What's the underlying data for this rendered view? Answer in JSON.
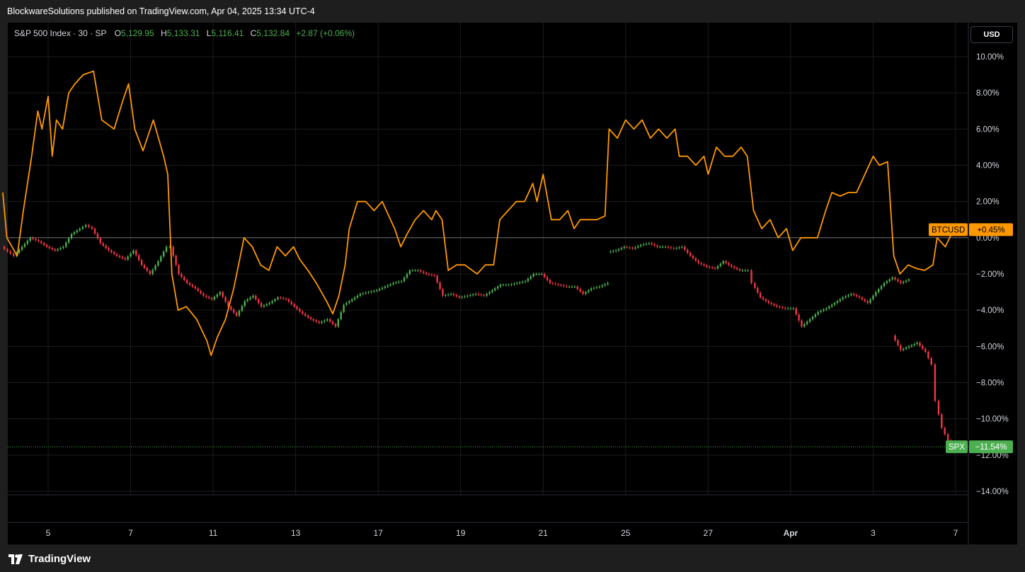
{
  "header": {
    "published": "BlockwareSolutions published on TradingView.com, Apr 04, 2025 13:34 UTC-4"
  },
  "legend": {
    "symbol": "S&P 500 Index · 30 · SP",
    "o_label": "O",
    "o_value": "5,129.95",
    "h_label": "H",
    "h_value": "5,133.31",
    "l_label": "L",
    "l_value": "5,116.41",
    "c_label": "C",
    "c_value": "5,132.84",
    "change": "+2.87 (+0.06%)"
  },
  "currency_button": "USD",
  "footer": {
    "brand": "TradingView"
  },
  "chart_data": {
    "type": "line",
    "scale": "percent",
    "ylim": [
      -14.0,
      10.0
    ],
    "yticks": [
      "10.00%",
      "8.00%",
      "6.00%",
      "4.00%",
      "2.00%",
      "0.00%",
      "−2.00%",
      "−4.00%",
      "−6.00%",
      "−8.00%",
      "−10.00%",
      "−12.00%",
      "−14.00%"
    ],
    "ytick_values": [
      10,
      8,
      6,
      4,
      2,
      0,
      -2,
      -4,
      -6,
      -8,
      -10,
      -12,
      -14
    ],
    "xticks": [
      "5",
      "7",
      "11",
      "13",
      "17",
      "19",
      "21",
      "25",
      "27",
      "Apr",
      "3",
      "7"
    ],
    "xtick_positions": [
      2,
      4,
      6,
      8,
      10,
      12,
      14,
      16,
      18,
      20,
      22,
      24
    ],
    "x_range": [
      0.9,
      25.3
    ],
    "series": [
      {
        "name": "BTCUSD",
        "color": "#ff9800",
        "last_label": "+0.45%",
        "last_value": 0.45,
        "points": [
          [
            0.9,
            2.5
          ],
          [
            1.0,
            0.0
          ],
          [
            1.25,
            -1.0
          ],
          [
            1.4,
            1.5
          ],
          [
            1.6,
            4.5
          ],
          [
            1.75,
            7.0
          ],
          [
            1.85,
            6.0
          ],
          [
            2.0,
            7.8
          ],
          [
            2.1,
            4.5
          ],
          [
            2.2,
            6.5
          ],
          [
            2.35,
            6.0
          ],
          [
            2.5,
            8.0
          ],
          [
            2.65,
            8.5
          ],
          [
            2.85,
            9.0
          ],
          [
            3.1,
            9.2
          ],
          [
            3.3,
            6.5
          ],
          [
            3.6,
            6.0
          ],
          [
            3.8,
            7.5
          ],
          [
            3.95,
            8.5
          ],
          [
            4.1,
            6.0
          ],
          [
            4.3,
            4.8
          ],
          [
            4.55,
            6.5
          ],
          [
            4.8,
            4.5
          ],
          [
            4.9,
            3.5
          ],
          [
            5.0,
            -2.0
          ],
          [
            5.15,
            -4.0
          ],
          [
            5.35,
            -3.8
          ],
          [
            5.6,
            -4.5
          ],
          [
            5.85,
            -5.7
          ],
          [
            5.95,
            -6.5
          ],
          [
            6.1,
            -5.5
          ],
          [
            6.3,
            -4.5
          ],
          [
            6.5,
            -2.8
          ],
          [
            6.75,
            0.0
          ],
          [
            6.95,
            -0.5
          ],
          [
            7.15,
            -1.5
          ],
          [
            7.35,
            -1.8
          ],
          [
            7.55,
            -0.5
          ],
          [
            7.75,
            -1.0
          ],
          [
            7.95,
            -0.5
          ],
          [
            8.1,
            -1.2
          ],
          [
            8.3,
            -1.8
          ],
          [
            8.5,
            -2.5
          ],
          [
            8.75,
            -3.5
          ],
          [
            8.9,
            -4.2
          ],
          [
            9.05,
            -3.2
          ],
          [
            9.2,
            -1.5
          ],
          [
            9.3,
            0.5
          ],
          [
            9.5,
            2.0
          ],
          [
            9.7,
            2.0
          ],
          [
            9.9,
            1.5
          ],
          [
            10.1,
            2.0
          ],
          [
            10.2,
            1.5
          ],
          [
            10.4,
            0.5
          ],
          [
            10.55,
            -0.5
          ],
          [
            10.7,
            0.2
          ],
          [
            10.9,
            1.0
          ],
          [
            11.1,
            1.5
          ],
          [
            11.3,
            1.0
          ],
          [
            11.4,
            1.5
          ],
          [
            11.55,
            1.0
          ],
          [
            11.7,
            -1.8
          ],
          [
            11.9,
            -1.5
          ],
          [
            12.1,
            -1.5
          ],
          [
            12.4,
            -2.0
          ],
          [
            12.6,
            -1.5
          ],
          [
            12.8,
            -1.5
          ],
          [
            12.95,
            1.0
          ],
          [
            13.15,
            1.5
          ],
          [
            13.35,
            2.0
          ],
          [
            13.55,
            2.0
          ],
          [
            13.75,
            3.0
          ],
          [
            13.85,
            2.0
          ],
          [
            14.0,
            3.5
          ],
          [
            14.2,
            1.0
          ],
          [
            14.4,
            1.0
          ],
          [
            14.6,
            1.5
          ],
          [
            14.75,
            0.5
          ],
          [
            14.9,
            1.0
          ],
          [
            15.1,
            1.0
          ],
          [
            15.3,
            1.0
          ],
          [
            15.5,
            1.2
          ],
          [
            15.6,
            6.0
          ],
          [
            15.8,
            5.5
          ],
          [
            16.0,
            6.5
          ],
          [
            16.2,
            6.0
          ],
          [
            16.4,
            6.5
          ],
          [
            16.6,
            5.5
          ],
          [
            16.8,
            6.0
          ],
          [
            17.0,
            5.5
          ],
          [
            17.2,
            6.0
          ],
          [
            17.3,
            4.5
          ],
          [
            17.5,
            4.5
          ],
          [
            17.7,
            4.0
          ],
          [
            17.9,
            4.5
          ],
          [
            18.0,
            3.5
          ],
          [
            18.2,
            5.0
          ],
          [
            18.4,
            4.5
          ],
          [
            18.6,
            4.5
          ],
          [
            18.8,
            5.0
          ],
          [
            18.95,
            4.5
          ],
          [
            19.1,
            1.5
          ],
          [
            19.3,
            0.5
          ],
          [
            19.5,
            1.0
          ],
          [
            19.7,
            0.0
          ],
          [
            19.9,
            0.5
          ],
          [
            20.05,
            -0.7
          ],
          [
            20.25,
            0.0
          ],
          [
            20.45,
            0.0
          ],
          [
            20.65,
            0.0
          ],
          [
            20.85,
            1.5
          ],
          [
            21.0,
            2.5
          ],
          [
            21.2,
            2.3
          ],
          [
            21.4,
            2.5
          ],
          [
            21.6,
            2.5
          ],
          [
            21.8,
            3.5
          ],
          [
            22.0,
            4.5
          ],
          [
            22.15,
            4.0
          ],
          [
            22.35,
            4.2
          ],
          [
            22.5,
            -1.0
          ],
          [
            22.65,
            -2.0
          ],
          [
            22.85,
            -1.5
          ],
          [
            23.05,
            -1.7
          ],
          [
            23.25,
            -1.8
          ],
          [
            23.45,
            -1.5
          ],
          [
            23.55,
            0.0
          ],
          [
            23.75,
            -0.5
          ],
          [
            23.95,
            0.45
          ]
        ]
      },
      {
        "name": "SPX",
        "color": "#4caf50",
        "down_color": "#f23645",
        "last_label": "−11.54%",
        "last_value": -11.54,
        "points": [
          [
            0.9,
            -0.5
          ],
          [
            1.2,
            -1.0
          ],
          [
            1.4,
            -0.5
          ],
          [
            1.6,
            0.0
          ],
          [
            1.8,
            -0.2
          ],
          [
            2.0,
            -0.5
          ],
          [
            2.2,
            -0.7
          ],
          [
            2.4,
            -0.5
          ],
          [
            2.6,
            0.2
          ],
          [
            2.8,
            0.5
          ],
          [
            2.95,
            0.7
          ],
          [
            3.1,
            0.5
          ],
          [
            3.3,
            -0.3
          ],
          [
            3.5,
            -0.7
          ],
          [
            3.7,
            -1.0
          ],
          [
            3.9,
            -1.2
          ],
          [
            4.1,
            -0.7
          ],
          [
            4.3,
            -1.5
          ],
          [
            4.5,
            -2.0
          ],
          [
            4.7,
            -1.3
          ],
          [
            4.9,
            -0.5
          ],
          [
            5.0,
            -0.5
          ],
          [
            5.2,
            -2.0
          ],
          [
            5.4,
            -2.5
          ],
          [
            5.6,
            -2.8
          ],
          [
            5.8,
            -3.2
          ],
          [
            6.0,
            -3.4
          ],
          [
            6.2,
            -3.0
          ],
          [
            6.4,
            -3.8
          ],
          [
            6.6,
            -4.3
          ],
          [
            6.8,
            -3.5
          ],
          [
            7.0,
            -3.2
          ],
          [
            7.2,
            -3.8
          ],
          [
            7.4,
            -3.6
          ],
          [
            7.6,
            -3.3
          ],
          [
            7.8,
            -3.4
          ],
          [
            8.0,
            -3.8
          ],
          [
            8.2,
            -4.2
          ],
          [
            8.4,
            -4.5
          ],
          [
            8.6,
            -4.7
          ],
          [
            8.8,
            -4.5
          ],
          [
            9.0,
            -4.9
          ],
          [
            9.2,
            -3.7
          ],
          [
            9.4,
            -3.4
          ],
          [
            9.6,
            -3.1
          ],
          [
            9.8,
            -3.0
          ],
          [
            10.0,
            -2.9
          ],
          [
            10.2,
            -2.7
          ],
          [
            10.4,
            -2.5
          ],
          [
            10.6,
            -2.4
          ],
          [
            10.8,
            -1.8
          ],
          [
            11.0,
            -1.8
          ],
          [
            11.2,
            -2.0
          ],
          [
            11.4,
            -2.1
          ],
          [
            11.6,
            -3.2
          ],
          [
            11.8,
            -3.1
          ],
          [
            12.0,
            -3.3
          ],
          [
            12.2,
            -3.2
          ],
          [
            12.4,
            -3.1
          ],
          [
            12.6,
            -3.2
          ],
          [
            12.8,
            -2.9
          ],
          [
            13.0,
            -2.6
          ],
          [
            13.2,
            -2.6
          ],
          [
            13.4,
            -2.5
          ],
          [
            13.6,
            -2.4
          ],
          [
            13.8,
            -2.0
          ],
          [
            14.0,
            -2.0
          ],
          [
            14.2,
            -2.5
          ],
          [
            14.4,
            -2.6
          ],
          [
            14.6,
            -2.7
          ],
          [
            14.8,
            -2.7
          ],
          [
            15.0,
            -3.1
          ],
          [
            15.2,
            -2.8
          ],
          [
            15.4,
            -2.7
          ],
          [
            15.6,
            -2.5
          ],
          [
            15.6,
            -0.8
          ],
          [
            15.8,
            -0.7
          ],
          [
            16.0,
            -0.5
          ],
          [
            16.2,
            -0.6
          ],
          [
            16.4,
            -0.4
          ],
          [
            16.6,
            -0.3
          ],
          [
            16.8,
            -0.5
          ],
          [
            17.0,
            -0.5
          ],
          [
            17.2,
            -0.6
          ],
          [
            17.4,
            -0.5
          ],
          [
            17.6,
            -1.0
          ],
          [
            17.8,
            -1.4
          ],
          [
            18.0,
            -1.6
          ],
          [
            18.2,
            -1.7
          ],
          [
            18.4,
            -1.3
          ],
          [
            18.6,
            -1.6
          ],
          [
            18.8,
            -1.8
          ],
          [
            19.0,
            -1.8
          ],
          [
            19.1,
            -2.5
          ],
          [
            19.3,
            -3.3
          ],
          [
            19.5,
            -3.6
          ],
          [
            19.7,
            -3.8
          ],
          [
            19.9,
            -3.9
          ],
          [
            20.1,
            -3.9
          ],
          [
            20.3,
            -4.9
          ],
          [
            20.5,
            -4.5
          ],
          [
            20.7,
            -4.1
          ],
          [
            20.9,
            -3.9
          ],
          [
            21.1,
            -3.6
          ],
          [
            21.3,
            -3.3
          ],
          [
            21.5,
            -3.1
          ],
          [
            21.7,
            -3.3
          ],
          [
            21.9,
            -3.6
          ],
          [
            22.1,
            -3.0
          ],
          [
            22.3,
            -2.5
          ],
          [
            22.5,
            -2.2
          ],
          [
            22.7,
            -2.5
          ],
          [
            22.9,
            -2.3
          ],
          [
            22.5,
            -5.4
          ],
          [
            22.7,
            -6.2
          ],
          [
            22.9,
            -6.0
          ],
          [
            23.1,
            -5.8
          ],
          [
            23.3,
            -6.3
          ],
          [
            23.45,
            -7.0
          ],
          [
            23.55,
            -9.0
          ],
          [
            23.7,
            -10.5
          ],
          [
            23.85,
            -11.2
          ],
          [
            24.0,
            -11.5
          ],
          [
            24.1,
            -11.54
          ]
        ]
      }
    ],
    "crosshair_value": 0.0
  }
}
